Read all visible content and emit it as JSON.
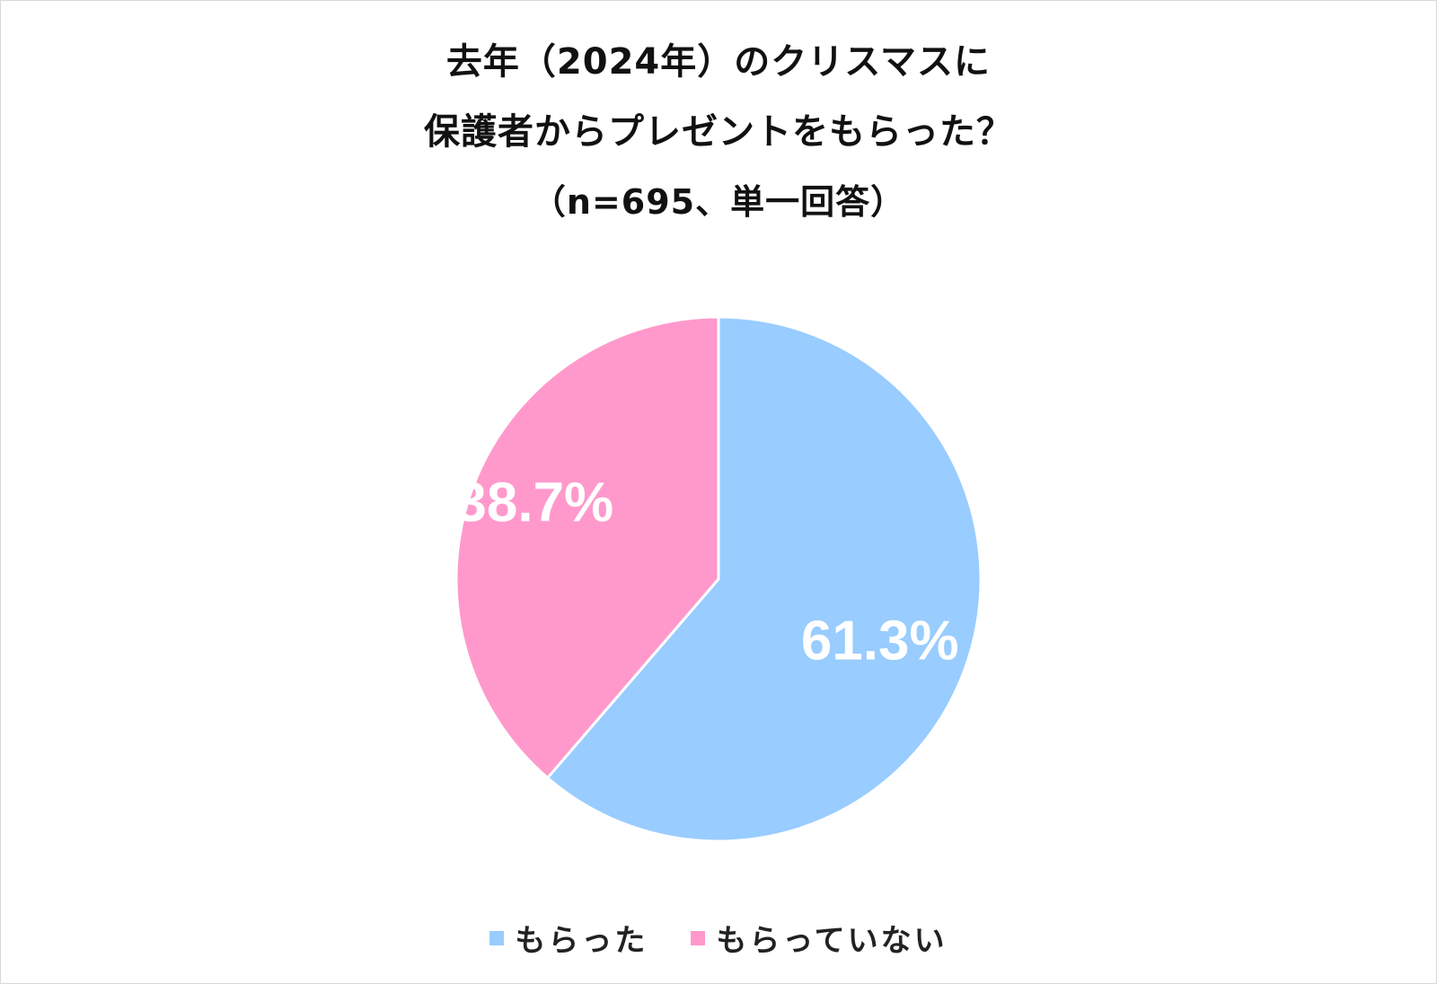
{
  "chart_data": {
    "type": "pie",
    "title_lines": [
      "去年（2024年）のクリスマスに",
      "保護者からプレゼントをもらった？",
      "（n=695、単一回答）"
    ],
    "slices": [
      {
        "name": "もらった",
        "value": 61.3,
        "label": "61.3%",
        "color": "#99CCFF"
      },
      {
        "name": "もらっていない",
        "value": 38.7,
        "label": "38.7%",
        "color": "#FF99CC"
      }
    ],
    "legend_position": "bottom",
    "start_angle": "12 o'clock",
    "direction": "clockwise"
  }
}
